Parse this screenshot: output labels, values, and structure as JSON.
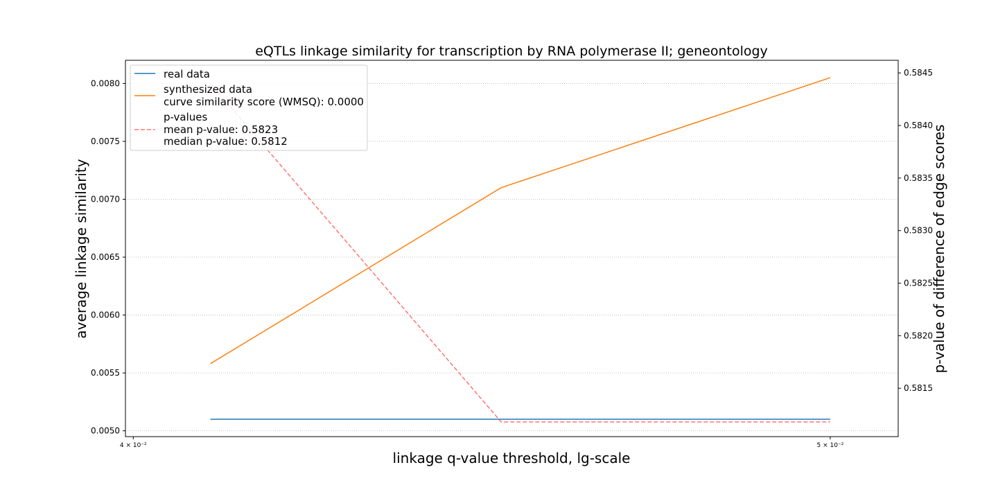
{
  "chart_data": {
    "type": "line",
    "title": "eQTLs linkage similarity for transcription by RNA polymerase II; geneontology",
    "xlabel": "linkage q-value threshold, lg-scale",
    "ylabel": "average linkage similarity",
    "y2label": "p-value of difference of edge scores",
    "x_scale": "log",
    "x": [
      0.041,
      0.045,
      0.05
    ],
    "xlim": [
      0.0399,
      0.0511
    ],
    "xticks": [
      {
        "value": 0.04,
        "label": "4 × 10⁻²"
      },
      {
        "value": 0.05,
        "label": "5 × 10⁻²"
      }
    ],
    "ylim": [
      0.00495,
      0.0082
    ],
    "yticks": [
      "0.0050",
      "0.0055",
      "0.0060",
      "0.0065",
      "0.0070",
      "0.0075",
      "0.0080"
    ],
    "y2lim": [
      0.58104,
      0.58462
    ],
    "y2ticks": [
      "0.5815",
      "0.5820",
      "0.5825",
      "0.5830",
      "0.5835",
      "0.5840",
      "0.5845"
    ],
    "grid": "horizontal dotted",
    "legend_position": "top-left",
    "series": [
      {
        "name": "real data",
        "axis": "left",
        "color": "#1f77b4",
        "style": "solid",
        "values": [
          0.0051,
          0.0051,
          0.0051
        ]
      },
      {
        "name": "synthesized data",
        "axis": "left",
        "color": "#ff7f0e",
        "style": "solid",
        "values": [
          0.00558,
          0.0071,
          0.00805
        ]
      },
      {
        "name": "p-values",
        "axis": "right",
        "color": "#ff7373",
        "style": "dashed",
        "values": [
          0.5844,
          0.58118,
          0.58118
        ]
      }
    ],
    "legend": [
      {
        "lines": [
          "real data"
        ]
      },
      {
        "lines": [
          "synthesized data",
          "curve similarity score (WMSQ): 0.0000"
        ]
      },
      {
        "lines": [
          "p-values",
          "mean p-value: 0.5823",
          "median p-value: 0.5812"
        ]
      }
    ]
  }
}
